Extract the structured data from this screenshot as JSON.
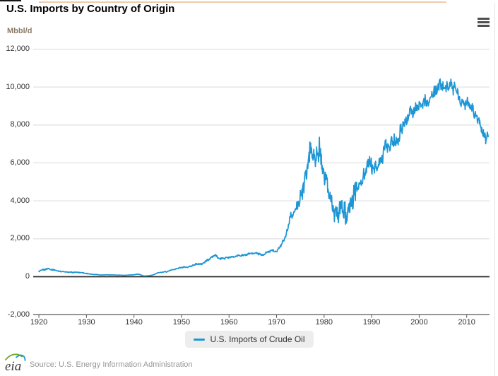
{
  "page": {
    "logo_text": "eia",
    "source_text": "Source: U.S. Energy Information Administration"
  },
  "colors": {
    "line": "#1e96d5",
    "grid": "#d9d9d9",
    "zero_line": "#2e2e2e",
    "axis_line": "#666666",
    "tick_mark": "#555555",
    "title_text": "#000000",
    "unit_text": "#8a7a68",
    "source_text": "#969696",
    "legend_bg": "#ededed",
    "top_accent": "#edcbad"
  },
  "chart_data": {
    "type": "line",
    "title": "U.S. Imports by Country of Origin",
    "ylabel": "Mbbl/d",
    "xlabel": "",
    "grid": "horizontal",
    "legend_position": "bottom-center",
    "xlim": [
      1918.8,
      2014.8
    ],
    "ylim": [
      -2000,
      12000
    ],
    "x_ticks": [
      "1920",
      "1930",
      "1940",
      "1950",
      "1960",
      "1970",
      "1980",
      "1990",
      "2000",
      "2010"
    ],
    "y_ticks": [
      {
        "value": 12000,
        "label": "12,000"
      },
      {
        "value": 10000,
        "label": "10,000"
      },
      {
        "value": 8000,
        "label": "8,000"
      },
      {
        "value": 6000,
        "label": "6,000"
      },
      {
        "value": 4000,
        "label": "4,000"
      },
      {
        "value": 2000,
        "label": "2,000"
      },
      {
        "value": 0,
        "label": "0"
      },
      {
        "value": -2000,
        "label": "-2,000"
      }
    ],
    "resolution": "monthly series shown; annual average values listed below",
    "series": [
      {
        "name": "U.S. Imports of Crude Oil",
        "color": "#1e96d5",
        "start_year": 1920,
        "end_year": 2014,
        "annual_values": [
          280,
          380,
          420,
          360,
          300,
          270,
          245,
          230,
          230,
          220,
          170,
          130,
          120,
          90,
          100,
          95,
          90,
          80,
          75,
          90,
          110,
          140,
          40,
          50,
          90,
          210,
          240,
          270,
          355,
          425,
          490,
          495,
          575,
          650,
          655,
          780,
          935,
          1150,
          950,
          965,
          1015,
          1045,
          1125,
          1130,
          1200,
          1240,
          1225,
          1130,
          1290,
          1410,
          1325,
          1680,
          2220,
          3245,
          3475,
          4105,
          5290,
          6615,
          6355,
          6520,
          5265,
          4395,
          3490,
          3330,
          3425,
          3150,
          4180,
          4675,
          5110,
          5845,
          5895,
          5780,
          6085,
          6790,
          7060,
          7230,
          7510,
          8225,
          8705,
          8730,
          9070,
          9330,
          9140,
          9665,
          10090,
          10125,
          10120,
          10030,
          9780,
          9015,
          9215,
          8935,
          8530,
          7730,
          7345
        ]
      }
    ]
  }
}
